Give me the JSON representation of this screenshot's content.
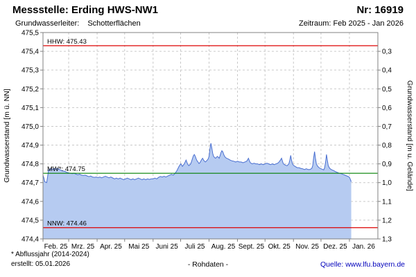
{
  "header": {
    "station_label": "Messstelle: Erding HWS-NW1",
    "number_label": "Nr: 16919",
    "aquifer_label": "Grundwasserleiter:",
    "aquifer_value": "Schotterflächen",
    "period_label": "Zeitraum: Feb 2025 - Jan 2026"
  },
  "footer": {
    "note": "* Abflussjahr (2014-2024)",
    "created": "erstellt: 05.01.2026",
    "center": "- Rohdaten -",
    "source": "Quelle: www.lfu.bayern.de"
  },
  "chart_data": {
    "type": "area",
    "ylabel_left": "Grundwasserstand [m ü. NN]",
    "ylabel_right": "Grundwasserstand [m u. Gelände]",
    "ylim_left": [
      474.4,
      475.5
    ],
    "ground_elevation": 475.7,
    "grid": true,
    "colors": {
      "grid": "#c9c9c9",
      "border": "#808080",
      "line": "#4a6fd0",
      "area_fill": "#b6cbf1",
      "ref_red": "#dd0000",
      "ref_green": "#008000"
    },
    "y_left_ticks": [
      {
        "v": 475.5,
        "label": "475,5"
      },
      {
        "v": 475.4,
        "label": "475,4"
      },
      {
        "v": 475.3,
        "label": "475,3"
      },
      {
        "v": 475.2,
        "label": "475,2"
      },
      {
        "v": 475.1,
        "label": "475,1"
      },
      {
        "v": 475.0,
        "label": "475,0"
      },
      {
        "v": 474.9,
        "label": "474,9"
      },
      {
        "v": 474.8,
        "label": "474,8"
      },
      {
        "v": 474.7,
        "label": "474,7"
      },
      {
        "v": 474.6,
        "label": "474,6"
      },
      {
        "v": 474.5,
        "label": "474,5"
      },
      {
        "v": 474.4,
        "label": "474,4"
      }
    ],
    "y_right_ticks": [
      {
        "depth": 0.3,
        "label": "0,3"
      },
      {
        "depth": 0.4,
        "label": "0,4"
      },
      {
        "depth": 0.5,
        "label": "0,5"
      },
      {
        "depth": 0.6,
        "label": "0,6"
      },
      {
        "depth": 0.7,
        "label": "0,7"
      },
      {
        "depth": 0.8,
        "label": "0,8"
      },
      {
        "depth": 0.9,
        "label": "0,9"
      },
      {
        "depth": 1.0,
        "label": "1,0"
      },
      {
        "depth": 1.1,
        "label": "1,1"
      },
      {
        "depth": 1.2,
        "label": "1,2"
      },
      {
        "depth": 1.3,
        "label": "1,3"
      }
    ],
    "x_months": {
      "labels": [
        "Feb. 25",
        "Mrz. 25",
        "Apr. 25",
        "Mai 25",
        "Juni 25",
        "Juli 25",
        "Aug. 25",
        "Sept. 25",
        "Okt. 25",
        "Nov. 25",
        "Dez. 25",
        "Jan. 26"
      ],
      "starts_day": [
        0,
        28,
        59,
        89,
        120,
        150,
        181,
        212,
        242,
        273,
        303,
        334
      ],
      "total_days": 365
    },
    "ref_lines": [
      {
        "name": "HHW",
        "label": "HHW: 475.43",
        "value": 475.43,
        "color": "#dd0000"
      },
      {
        "name": "MW",
        "label": "MW*: 474.75",
        "value": 474.75,
        "color": "#008000"
      },
      {
        "name": "NNW",
        "label": "NNW: 474.46",
        "value": 474.46,
        "color": "#dd0000"
      }
    ],
    "series": [
      {
        "name": "Grundwasserstand Rohdaten",
        "points": [
          [
            0,
            474.74
          ],
          [
            1,
            474.725
          ],
          [
            2,
            474.705
          ],
          [
            4,
            474.7
          ],
          [
            5,
            474.73
          ],
          [
            6,
            474.765
          ],
          [
            8,
            474.775
          ],
          [
            10,
            474.77
          ],
          [
            12,
            474.775
          ],
          [
            14,
            474.772
          ],
          [
            16,
            474.775
          ],
          [
            18,
            474.77
          ],
          [
            20,
            474.765
          ],
          [
            22,
            474.762
          ],
          [
            24,
            474.76
          ],
          [
            26,
            474.755
          ],
          [
            28,
            474.752
          ],
          [
            30,
            474.75
          ],
          [
            32,
            474.748
          ],
          [
            34,
            474.75
          ],
          [
            36,
            474.745
          ],
          [
            38,
            474.742
          ],
          [
            40,
            474.745
          ],
          [
            42,
            474.74
          ],
          [
            44,
            474.738
          ],
          [
            46,
            474.74
          ],
          [
            48,
            474.736
          ],
          [
            50,
            474.732
          ],
          [
            52,
            474.735
          ],
          [
            54,
            474.73
          ],
          [
            56,
            474.728
          ],
          [
            58,
            474.73
          ],
          [
            60,
            474.727
          ],
          [
            62,
            474.73
          ],
          [
            64,
            474.726
          ],
          [
            66,
            474.73
          ],
          [
            68,
            474.734
          ],
          [
            70,
            474.73
          ],
          [
            72,
            474.726
          ],
          [
            74,
            474.73
          ],
          [
            76,
            474.725
          ],
          [
            78,
            474.72
          ],
          [
            80,
            474.724
          ],
          [
            82,
            474.72
          ],
          [
            84,
            474.724
          ],
          [
            86,
            474.72
          ],
          [
            88,
            474.716
          ],
          [
            90,
            474.72
          ],
          [
            92,
            474.724
          ],
          [
            94,
            474.72
          ],
          [
            96,
            474.716
          ],
          [
            98,
            474.72
          ],
          [
            100,
            474.716
          ],
          [
            102,
            474.72
          ],
          [
            104,
            474.724
          ],
          [
            106,
            474.72
          ],
          [
            108,
            474.716
          ],
          [
            110,
            474.72
          ],
          [
            112,
            474.716
          ],
          [
            114,
            474.72
          ],
          [
            116,
            474.717
          ],
          [
            118,
            474.72
          ],
          [
            120,
            474.72
          ],
          [
            122,
            474.724
          ],
          [
            124,
            474.72
          ],
          [
            126,
            474.728
          ],
          [
            128,
            474.733
          ],
          [
            130,
            474.73
          ],
          [
            132,
            474.734
          ],
          [
            134,
            474.73
          ],
          [
            136,
            474.735
          ],
          [
            138,
            474.74
          ],
          [
            140,
            474.744
          ],
          [
            142,
            474.74
          ],
          [
            144,
            474.75
          ],
          [
            146,
            474.764
          ],
          [
            148,
            474.784
          ],
          [
            150,
            474.8
          ],
          [
            151,
            474.795
          ],
          [
            152,
            474.787
          ],
          [
            153,
            474.794
          ],
          [
            154,
            474.8
          ],
          [
            155,
            474.81
          ],
          [
            156,
            474.82
          ],
          [
            157,
            474.806
          ],
          [
            158,
            474.796
          ],
          [
            159,
            474.79
          ],
          [
            160,
            474.795
          ],
          [
            161,
            474.8
          ],
          [
            162,
            474.814
          ],
          [
            163,
            474.83
          ],
          [
            164,
            474.844
          ],
          [
            165,
            474.85
          ],
          [
            166,
            474.84
          ],
          [
            167,
            474.826
          ],
          [
            168,
            474.816
          ],
          [
            169,
            474.81
          ],
          [
            170,
            474.802
          ],
          [
            171,
            474.806
          ],
          [
            172,
            474.814
          ],
          [
            173,
            474.824
          ],
          [
            174,
            474.83
          ],
          [
            175,
            474.82
          ],
          [
            176,
            474.814
          ],
          [
            177,
            474.81
          ],
          [
            178,
            474.814
          ],
          [
            179,
            474.82
          ],
          [
            180,
            474.826
          ],
          [
            181,
            474.84
          ],
          [
            182,
            474.88
          ],
          [
            183,
            474.91
          ],
          [
            184,
            474.885
          ],
          [
            185,
            474.856
          ],
          [
            186,
            474.84
          ],
          [
            187,
            474.834
          ],
          [
            188,
            474.83
          ],
          [
            189,
            474.834
          ],
          [
            190,
            474.84
          ],
          [
            191,
            474.836
          ],
          [
            192,
            474.83
          ],
          [
            193,
            474.844
          ],
          [
            194,
            474.86
          ],
          [
            195,
            474.87
          ],
          [
            196,
            474.864
          ],
          [
            197,
            474.85
          ],
          [
            198,
            474.84
          ],
          [
            199,
            474.834
          ],
          [
            200,
            474.83
          ],
          [
            202,
            474.826
          ],
          [
            204,
            474.82
          ],
          [
            206,
            474.816
          ],
          [
            208,
            474.814
          ],
          [
            210,
            474.81
          ],
          [
            212,
            474.814
          ],
          [
            214,
            474.81
          ],
          [
            216,
            474.81
          ],
          [
            218,
            474.806
          ],
          [
            220,
            474.81
          ],
          [
            222,
            474.814
          ],
          [
            224,
            474.83
          ],
          [
            225,
            474.816
          ],
          [
            226,
            474.806
          ],
          [
            228,
            474.8
          ],
          [
            230,
            474.804
          ],
          [
            232,
            474.8
          ],
          [
            234,
            474.8
          ],
          [
            236,
            474.796
          ],
          [
            238,
            474.8
          ],
          [
            240,
            474.796
          ],
          [
            242,
            474.8
          ],
          [
            244,
            474.804
          ],
          [
            246,
            474.8
          ],
          [
            248,
            474.796
          ],
          [
            250,
            474.8
          ],
          [
            252,
            474.796
          ],
          [
            254,
            474.8
          ],
          [
            256,
            474.804
          ],
          [
            258,
            474.814
          ],
          [
            260,
            474.83
          ],
          [
            261,
            474.814
          ],
          [
            262,
            474.8
          ],
          [
            264,
            474.794
          ],
          [
            266,
            474.79
          ],
          [
            268,
            474.8
          ],
          [
            269,
            474.82
          ],
          [
            270,
            474.845
          ],
          [
            271,
            474.818
          ],
          [
            272,
            474.8
          ],
          [
            273,
            474.792
          ],
          [
            275,
            474.786
          ],
          [
            277,
            474.78
          ],
          [
            279,
            474.78
          ],
          [
            281,
            474.776
          ],
          [
            283,
            474.774
          ],
          [
            285,
            474.77
          ],
          [
            287,
            474.774
          ],
          [
            289,
            474.77
          ],
          [
            291,
            474.77
          ],
          [
            293,
            474.776
          ],
          [
            294,
            474.79
          ],
          [
            295,
            474.835
          ],
          [
            296,
            474.865
          ],
          [
            297,
            474.83
          ],
          [
            298,
            474.8
          ],
          [
            299,
            474.79
          ],
          [
            300,
            474.784
          ],
          [
            301,
            474.78
          ],
          [
            302,
            474.776
          ],
          [
            304,
            474.772
          ],
          [
            306,
            474.768
          ],
          [
            307,
            474.78
          ],
          [
            308,
            474.81
          ],
          [
            309,
            474.85
          ],
          [
            310,
            474.818
          ],
          [
            311,
            474.79
          ],
          [
            312,
            474.78
          ],
          [
            313,
            474.774
          ],
          [
            315,
            474.768
          ],
          [
            317,
            474.764
          ],
          [
            319,
            474.758
          ],
          [
            321,
            474.754
          ],
          [
            323,
            474.75
          ],
          [
            325,
            474.748
          ],
          [
            327,
            474.744
          ],
          [
            329,
            474.74
          ],
          [
            331,
            474.736
          ],
          [
            333,
            474.732
          ],
          [
            334,
            474.728
          ],
          [
            335,
            474.718
          ],
          [
            336,
            474.705
          ]
        ]
      }
    ]
  }
}
